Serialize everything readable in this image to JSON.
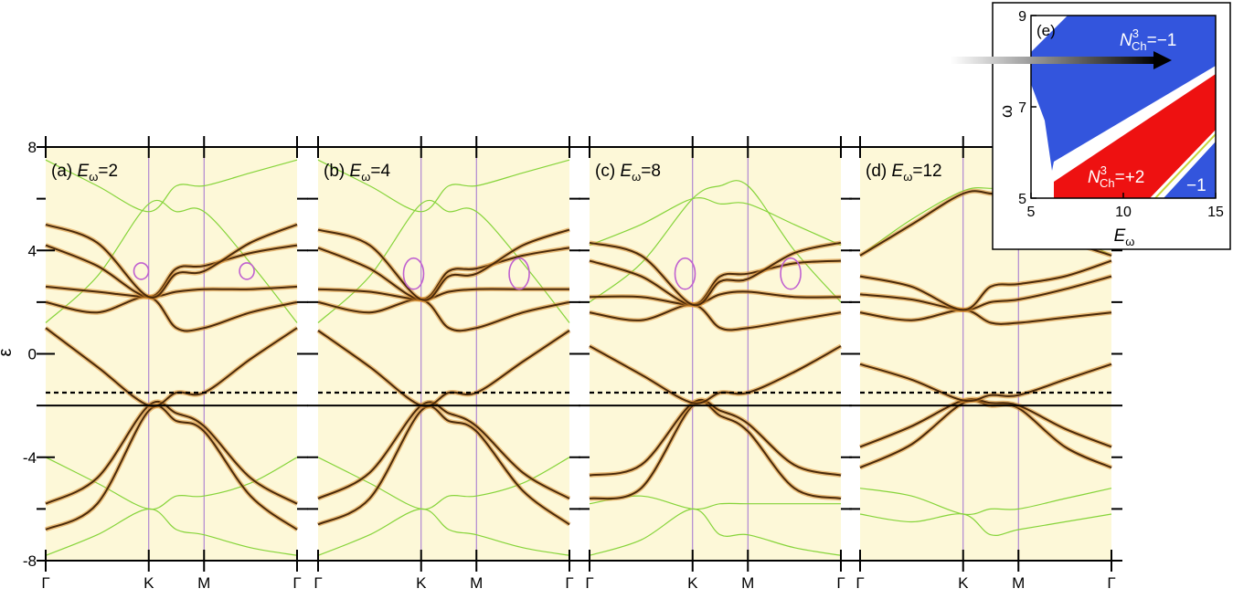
{
  "chart_data": [
    {
      "type": "line",
      "panel_label": "(a)",
      "E_label": "E",
      "E_sub": "ω",
      "E_value": "=2",
      "k_ticks": [
        "Γ",
        "K",
        "M",
        "Γ"
      ],
      "y_ticks": [
        "8",
        "4",
        "0",
        "-4",
        "-8"
      ],
      "ylabel": "ε",
      "ylim": [
        -8,
        8
      ],
      "dashed_level": -1.5,
      "grid": false,
      "highlight_circle_k": [
        0.38,
        1.46
      ],
      "highlight_circle_eps": 3.2,
      "floquet_bands": [
        {
          "name": "band1",
          "values": [
            -6.8,
            -5.8,
            -2.2,
            -2.6,
            -3.0,
            -5.5,
            -6.8
          ]
        },
        {
          "name": "band2",
          "values": [
            -5.8,
            -4.8,
            -2.0,
            -2.3,
            -2.8,
            -4.8,
            -5.8
          ]
        },
        {
          "name": "band3",
          "values": [
            1.0,
            -0.5,
            -2.0,
            -1.5,
            -1.5,
            -0.2,
            1.0
          ]
        },
        {
          "name": "band4",
          "values": [
            2.0,
            1.6,
            2.2,
            1.0,
            1.0,
            1.6,
            2.0
          ]
        },
        {
          "name": "band5",
          "values": [
            2.6,
            2.4,
            2.2,
            2.4,
            2.5,
            2.5,
            2.6
          ]
        },
        {
          "name": "band6",
          "values": [
            4.2,
            3.4,
            2.2,
            3.3,
            3.4,
            3.9,
            4.2
          ]
        },
        {
          "name": "band7",
          "values": [
            5.0,
            4.3,
            2.2,
            3.1,
            3.2,
            4.3,
            5.0
          ]
        }
      ],
      "replica_bands": [
        {
          "name": "r1",
          "values": [
            7.5,
            6.5,
            5.5,
            6.5,
            6.5,
            7.0,
            7.5
          ]
        },
        {
          "name": "r2",
          "values": [
            1.2,
            3.0,
            5.8,
            5.5,
            5.5,
            3.5,
            1.2
          ]
        },
        {
          "name": "r3",
          "values": [
            -4.0,
            -5.0,
            -6.0,
            -5.5,
            -5.5,
            -5.0,
            -4.0
          ]
        },
        {
          "name": "r4",
          "values": [
            -7.8,
            -7.0,
            -6.0,
            -6.8,
            -7.0,
            -7.5,
            -7.8
          ]
        }
      ]
    },
    {
      "type": "line",
      "panel_label": "(b)",
      "E_label": "E",
      "E_sub": "ω",
      "E_value": "=4",
      "k_ticks": [
        "Γ",
        "K",
        "M",
        "Γ"
      ],
      "y_ticks": [
        "8",
        "4",
        "0",
        "-4",
        "-8"
      ],
      "ylim": [
        -8,
        8
      ],
      "dashed_level": -1.5,
      "grid": false,
      "highlight_circle_k": [
        0.38,
        1.46
      ],
      "highlight_circle_eps": 3.1,
      "floquet_bands": [
        {
          "name": "band1",
          "values": [
            -6.6,
            -5.6,
            -2.2,
            -2.6,
            -3.0,
            -5.3,
            -6.6
          ]
        },
        {
          "name": "band2",
          "values": [
            -5.6,
            -4.6,
            -2.0,
            -2.3,
            -2.8,
            -4.6,
            -5.6
          ]
        },
        {
          "name": "band3",
          "values": [
            0.9,
            -0.5,
            -2.0,
            -1.5,
            -1.5,
            -0.3,
            0.9
          ]
        },
        {
          "name": "band4",
          "values": [
            2.0,
            1.6,
            2.1,
            1.0,
            1.0,
            1.6,
            2.0
          ]
        },
        {
          "name": "band5",
          "values": [
            2.5,
            2.4,
            2.1,
            2.4,
            2.5,
            2.5,
            2.5
          ]
        },
        {
          "name": "band6",
          "values": [
            4.1,
            3.3,
            2.1,
            3.2,
            3.3,
            3.8,
            4.1
          ]
        },
        {
          "name": "band7",
          "values": [
            4.8,
            4.2,
            2.1,
            3.0,
            3.1,
            4.2,
            4.8
          ]
        }
      ],
      "replica_bands": [
        {
          "name": "r1",
          "values": [
            7.5,
            6.5,
            5.5,
            6.5,
            6.5,
            7.0,
            7.5
          ]
        },
        {
          "name": "r2",
          "values": [
            1.2,
            3.0,
            5.8,
            5.5,
            5.5,
            3.5,
            1.2
          ]
        },
        {
          "name": "r3",
          "values": [
            -4.0,
            -5.0,
            -6.0,
            -5.5,
            -5.5,
            -5.0,
            -4.0
          ]
        },
        {
          "name": "r4",
          "values": [
            -7.8,
            -7.0,
            -6.0,
            -6.8,
            -7.0,
            -7.5,
            -7.8
          ]
        }
      ]
    },
    {
      "type": "line",
      "panel_label": "(c)",
      "E_label": "E",
      "E_sub": "ω",
      "E_value": "=8",
      "k_ticks": [
        "Γ",
        "K",
        "M",
        "Γ"
      ],
      "y_ticks": [
        "8",
        "4",
        "0",
        "-4",
        "-8"
      ],
      "ylim": [
        -8,
        8
      ],
      "dashed_level": -1.5,
      "grid": false,
      "highlight_circle_k": [
        0.38,
        1.46
      ],
      "highlight_circle_eps": 3.1,
      "floquet_bands": [
        {
          "name": "band1",
          "values": [
            -5.6,
            -5.2,
            -2.0,
            -2.4,
            -3.0,
            -5.2,
            -5.6
          ]
        },
        {
          "name": "band2",
          "values": [
            -4.7,
            -4.3,
            -1.9,
            -2.2,
            -2.7,
            -4.3,
            -4.7
          ]
        },
        {
          "name": "band3",
          "values": [
            0.3,
            -0.8,
            -1.9,
            -1.5,
            -1.5,
            -0.7,
            0.3
          ]
        },
        {
          "name": "band4",
          "values": [
            1.6,
            1.3,
            1.9,
            1.0,
            1.0,
            1.3,
            1.6
          ]
        },
        {
          "name": "band5",
          "values": [
            2.2,
            2.2,
            1.9,
            2.3,
            2.4,
            2.2,
            2.2
          ]
        },
        {
          "name": "band6",
          "values": [
            3.6,
            3.0,
            1.9,
            3.0,
            3.1,
            3.5,
            3.6
          ]
        },
        {
          "name": "band7",
          "values": [
            4.3,
            3.8,
            1.9,
            2.8,
            2.9,
            3.9,
            4.3
          ]
        }
      ],
      "replica_bands": [
        {
          "name": "r1",
          "values": [
            4.2,
            5.0,
            6.0,
            5.8,
            5.8,
            5.0,
            4.2
          ]
        },
        {
          "name": "r2",
          "values": [
            2.0,
            3.5,
            6.0,
            6.5,
            6.5,
            4.0,
            2.0
          ]
        },
        {
          "name": "r3",
          "values": [
            -5.8,
            -5.5,
            -6.0,
            -5.8,
            -5.8,
            -5.8,
            -5.8
          ]
        },
        {
          "name": "r4",
          "values": [
            -7.8,
            -7.2,
            -6.0,
            -7.0,
            -7.0,
            -7.5,
            -7.8
          ]
        }
      ]
    },
    {
      "type": "line",
      "panel_label": "(d)",
      "E_label": "E",
      "E_sub": "ω",
      "E_value": "=12",
      "k_ticks": [
        "Γ",
        "K",
        "M",
        "Γ"
      ],
      "y_ticks": [
        "8",
        "4",
        "0",
        "-4",
        "-8"
      ],
      "ylim": [
        -8,
        8
      ],
      "dashed_level": -1.5,
      "grid": false,
      "floquet_bands": [
        {
          "name": "band1",
          "values": [
            -4.4,
            -3.5,
            -1.9,
            -2.0,
            -2.1,
            -3.6,
            -4.4
          ]
        },
        {
          "name": "band2",
          "values": [
            -3.6,
            -2.8,
            -1.8,
            -1.9,
            -2.0,
            -2.9,
            -3.6
          ]
        },
        {
          "name": "band3",
          "values": [
            -0.4,
            -1.0,
            -1.8,
            -1.6,
            -1.6,
            -1.0,
            -0.4
          ]
        },
        {
          "name": "band4",
          "values": [
            1.6,
            1.3,
            1.7,
            1.2,
            1.2,
            1.4,
            1.6
          ]
        },
        {
          "name": "band5",
          "values": [
            2.3,
            2.1,
            1.7,
            2.0,
            2.1,
            2.5,
            3.0
          ]
        },
        {
          "name": "band6",
          "values": [
            3.0,
            2.6,
            1.7,
            2.6,
            2.7,
            3.0,
            3.6
          ]
        },
        {
          "name": "band7",
          "values": [
            3.8,
            5.0,
            6.2,
            6.2,
            6.0,
            4.5,
            3.8
          ]
        }
      ],
      "replica_bands": [
        {
          "name": "r1",
          "values": [
            3.8,
            5.2,
            6.3,
            6.4,
            6.3,
            4.8,
            3.8
          ]
        },
        {
          "name": "r2",
          "values": [
            -5.2,
            -5.5,
            -6.2,
            -6.0,
            -6.0,
            -5.6,
            -5.2
          ]
        },
        {
          "name": "r3",
          "values": [
            -6.2,
            -6.5,
            -6.2,
            -7.0,
            -6.8,
            -6.5,
            -6.2
          ]
        }
      ]
    }
  ],
  "phase_diagram": {
    "panel_label": "(e)",
    "xlabel": "E",
    "xlabel_sub": "ω",
    "ylabel": "ω",
    "x_ticks": [
      "5",
      "10",
      "15"
    ],
    "y_ticks": [
      "9",
      "7",
      "5"
    ],
    "xlim": [
      5,
      15
    ],
    "ylim": [
      5,
      9
    ],
    "regions": [
      {
        "label_main": "N",
        "label_sup": "3",
        "label_sub": "Ch",
        "label_value": "=−1",
        "color": "#3355dd"
      },
      {
        "label_main": "N",
        "label_sup": "3",
        "label_sub": "Ch",
        "label_value": "=+2",
        "color": "#ee1111"
      },
      {
        "label_main": "",
        "label_sup": "",
        "label_sub": "",
        "label_value": "−1",
        "color": "#3355dd"
      }
    ]
  },
  "colors": {
    "panel_bg": "#fdf8d8",
    "floquet_band": "#4a2a0a",
    "floquet_glow": "#d98a2a",
    "replica": "#86d43a",
    "vline": "#a070d0",
    "circle": "#c060d0",
    "blue": "#3355dd",
    "red": "#ee1111"
  }
}
